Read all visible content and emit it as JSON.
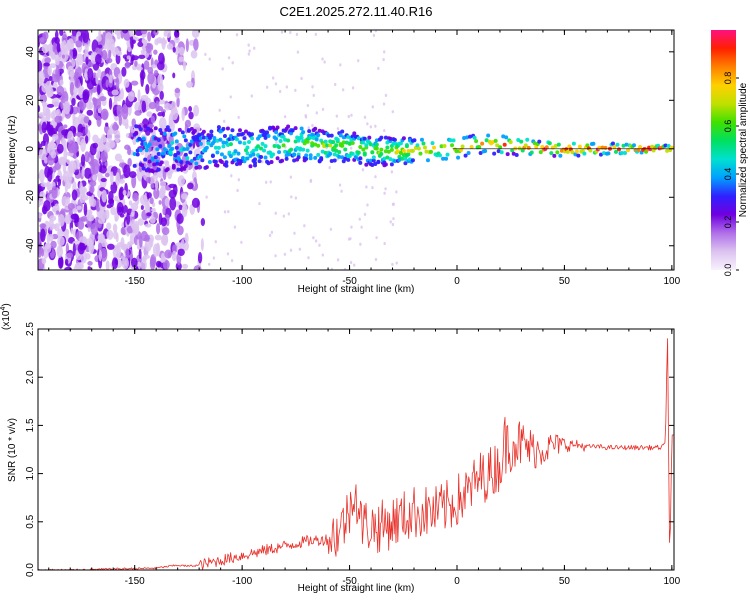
{
  "title": "C2E1.2025.272.11.40.R16",
  "chart_data": [
    {
      "type": "heatmap",
      "title": "C2E1.2025.272.11.40.R16",
      "xlabel": "Height of straight line (km)",
      "ylabel": "Frequency (Hz)",
      "xlim": [
        -195,
        101
      ],
      "ylim": [
        -50,
        49
      ],
      "xticks": [
        -150,
        -100,
        -50,
        0,
        50,
        100
      ],
      "yticks": [
        -40,
        -20,
        0,
        20,
        40
      ],
      "xtick_labels": [
        "-150",
        "-100",
        "-50",
        "0",
        "50",
        "100"
      ],
      "ytick_labels": [
        "-40",
        "-20",
        "0",
        "20",
        "40"
      ],
      "ridge": {
        "x": [
          -160,
          -130,
          -120,
          -110,
          -100,
          -90,
          -80,
          -70,
          -60,
          -50,
          -40,
          -30,
          -20,
          -10,
          0,
          10,
          20,
          30,
          40,
          50,
          60,
          70,
          80,
          90,
          100
        ],
        "y": [
          0,
          0,
          0,
          1,
          0,
          1,
          2,
          2,
          1,
          1,
          -1,
          -1,
          -1,
          0,
          0,
          2,
          2,
          1,
          0,
          0,
          0,
          0,
          0,
          0,
          0
        ]
      },
      "colorbar": {
        "label": "Normalized spectral amplitude",
        "range": [
          0,
          1
        ],
        "ticks": [
          0.0,
          0.2,
          0.4,
          0.6,
          0.8
        ],
        "tick_labels": [
          "0.0",
          "0.2",
          "0.4",
          "0.6",
          "0.8"
        ],
        "colors": [
          "#f8f2fc",
          "#dcc3f0",
          "#b070e8",
          "#7000e0",
          "#3020ff",
          "#00a0ff",
          "#00e0d0",
          "#00e060",
          "#40e000",
          "#c0e000",
          "#ffd000",
          "#ff8000",
          "#ff2000",
          "#ff1080"
        ]
      }
    },
    {
      "type": "line",
      "xlabel": "Height of straight line (km)",
      "ylabel": "SNR (10 * v/v)",
      "multiplier_label": "(x10",
      "multiplier_exp": "4",
      "multiplier_close": ")",
      "xlim": [
        -195,
        101
      ],
      "ylim": [
        0,
        2.5
      ],
      "xticks": [
        -150,
        -100,
        -50,
        0,
        50,
        100
      ],
      "yticks": [
        0.0,
        0.5,
        1.0,
        1.5,
        2.0,
        2.5
      ],
      "xtick_labels": [
        "-150",
        "-100",
        "-50",
        "0",
        "50",
        "100"
      ],
      "ytick_labels": [
        "0.0",
        "0.5",
        "1.0",
        "1.5",
        "2.0",
        "2.5"
      ],
      "series": [
        {
          "name": "SNR",
          "color": "#e8312a",
          "x": [
            -195,
            -180,
            -160,
            -140,
            -130,
            -125,
            -120,
            -110,
            -100,
            -90,
            -80,
            -70,
            -60,
            -55,
            -50,
            -48,
            -45,
            -40,
            -35,
            -30,
            -25,
            -20,
            -15,
            -10,
            -5,
            0,
            5,
            10,
            15,
            20,
            22,
            24,
            26,
            30,
            35,
            40,
            45,
            50,
            55,
            60,
            65,
            70,
            75,
            80,
            85,
            90,
            95,
            97,
            98,
            99,
            100
          ],
          "y": [
            0.0,
            0.0,
            0.01,
            0.02,
            0.05,
            0.04,
            0.05,
            0.1,
            0.15,
            0.2,
            0.25,
            0.3,
            0.32,
            0.4,
            0.6,
            0.9,
            0.5,
            0.45,
            0.45,
            0.5,
            0.55,
            0.6,
            0.6,
            0.6,
            0.65,
            0.72,
            0.8,
            0.95,
            1.0,
            1.1,
            1.3,
            1.3,
            1.35,
            1.3,
            1.25,
            1.25,
            1.3,
            1.3,
            1.3,
            1.28,
            1.28,
            1.27,
            1.27,
            1.27,
            1.27,
            1.27,
            1.27,
            1.3,
            2.5,
            0.0,
            1.4
          ]
        }
      ]
    }
  ]
}
